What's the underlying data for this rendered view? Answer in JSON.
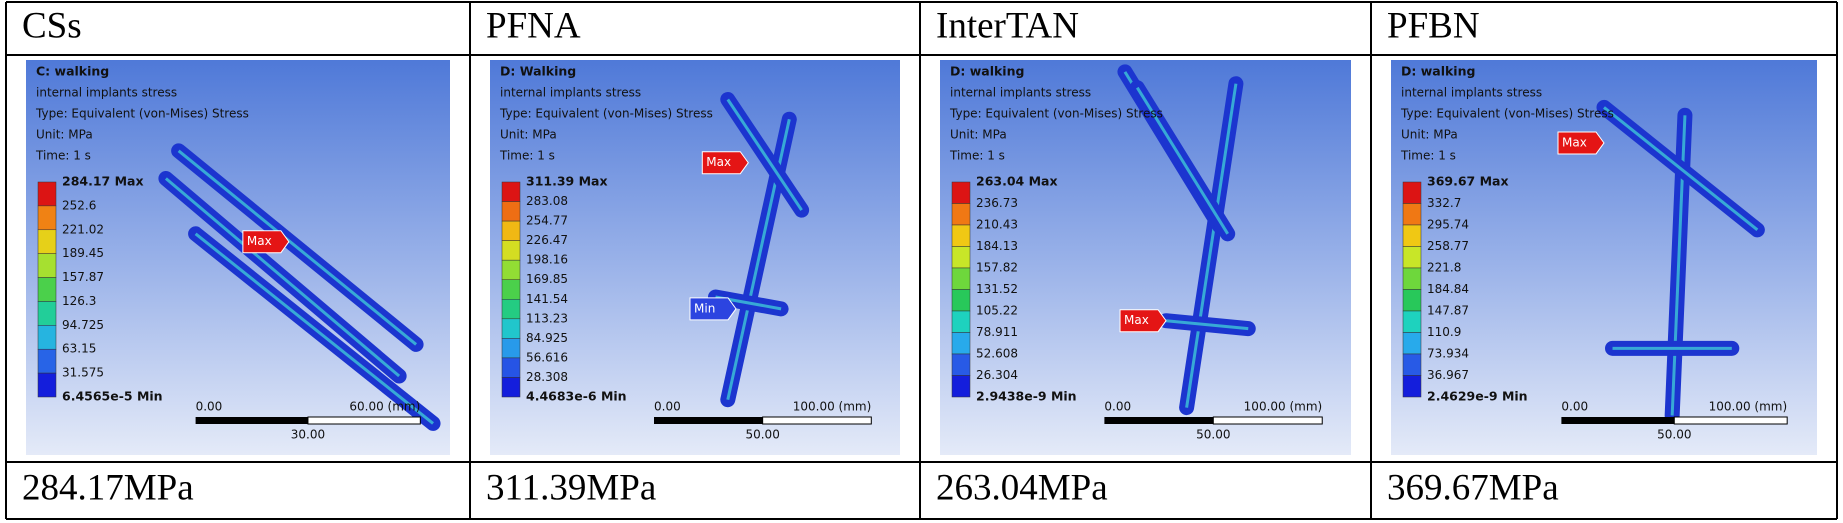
{
  "columns": [
    {
      "header": "CSs",
      "footer": "284.17MPa",
      "panel": {
        "title": "C: walking",
        "lines": [
          "internal implants stress",
          "Type: Equivalent (von-Mises) Stress",
          "Unit: MPa",
          "Time: 1 s"
        ],
        "legend": [
          "284.17 Max",
          "252.6",
          "221.02",
          "189.45",
          "157.87",
          "126.3",
          "94.725",
          "63.15",
          "31.575",
          "6.4565e-5 Min"
        ],
        "scale": [
          "0.00",
          "60.00 (mm)",
          "30.00"
        ],
        "markers": [
          "Max"
        ]
      }
    },
    {
      "header": "PFNA",
      "footer": "311.39MPa",
      "panel": {
        "title": "D: Walking",
        "lines": [
          "internal implants stress",
          "Type: Equivalent (von-Mises) Stress",
          "Unit: MPa",
          "Time: 1 s"
        ],
        "legend": [
          "311.39 Max",
          "283.08",
          "254.77",
          "226.47",
          "198.16",
          "169.85",
          "141.54",
          "113.23",
          "84.925",
          "56.616",
          "28.308",
          "4.4683e-6 Min"
        ],
        "scale": [
          "0.00",
          "100.00 (mm)",
          "50.00"
        ],
        "markers": [
          "Max",
          "Min"
        ]
      }
    },
    {
      "header": "InterTAN",
      "footer": "263.04MPa",
      "panel": {
        "title": "D: walking",
        "lines": [
          "internal implants stress",
          "Type: Equivalent (von-Mises) Stress",
          "Unit: MPa",
          "Time: 1 s"
        ],
        "legend": [
          "263.04 Max",
          "236.73",
          "210.43",
          "184.13",
          "157.82",
          "131.52",
          "105.22",
          "78.911",
          "52.608",
          "26.304",
          "2.9438e-9 Min"
        ],
        "scale": [
          "0.00",
          "100.00 (mm)",
          "50.00"
        ],
        "markers": [
          "Max"
        ]
      }
    },
    {
      "header": "PFBN",
      "footer": "369.67MPa",
      "panel": {
        "title": "D: walking",
        "lines": [
          "internal implants stress",
          "Type: Equivalent (von-Mises) Stress",
          "Unit: MPa",
          "Time: 1 s"
        ],
        "legend": [
          "369.67 Max",
          "332.7",
          "295.74",
          "258.77",
          "221.8",
          "184.84",
          "147.87",
          "110.9",
          "73.934",
          "36.967",
          "2.4629e-9 Min"
        ],
        "scale": [
          "0.00",
          "100.00 (mm)",
          "50.00"
        ],
        "markers": [
          "Max"
        ]
      }
    }
  ]
}
